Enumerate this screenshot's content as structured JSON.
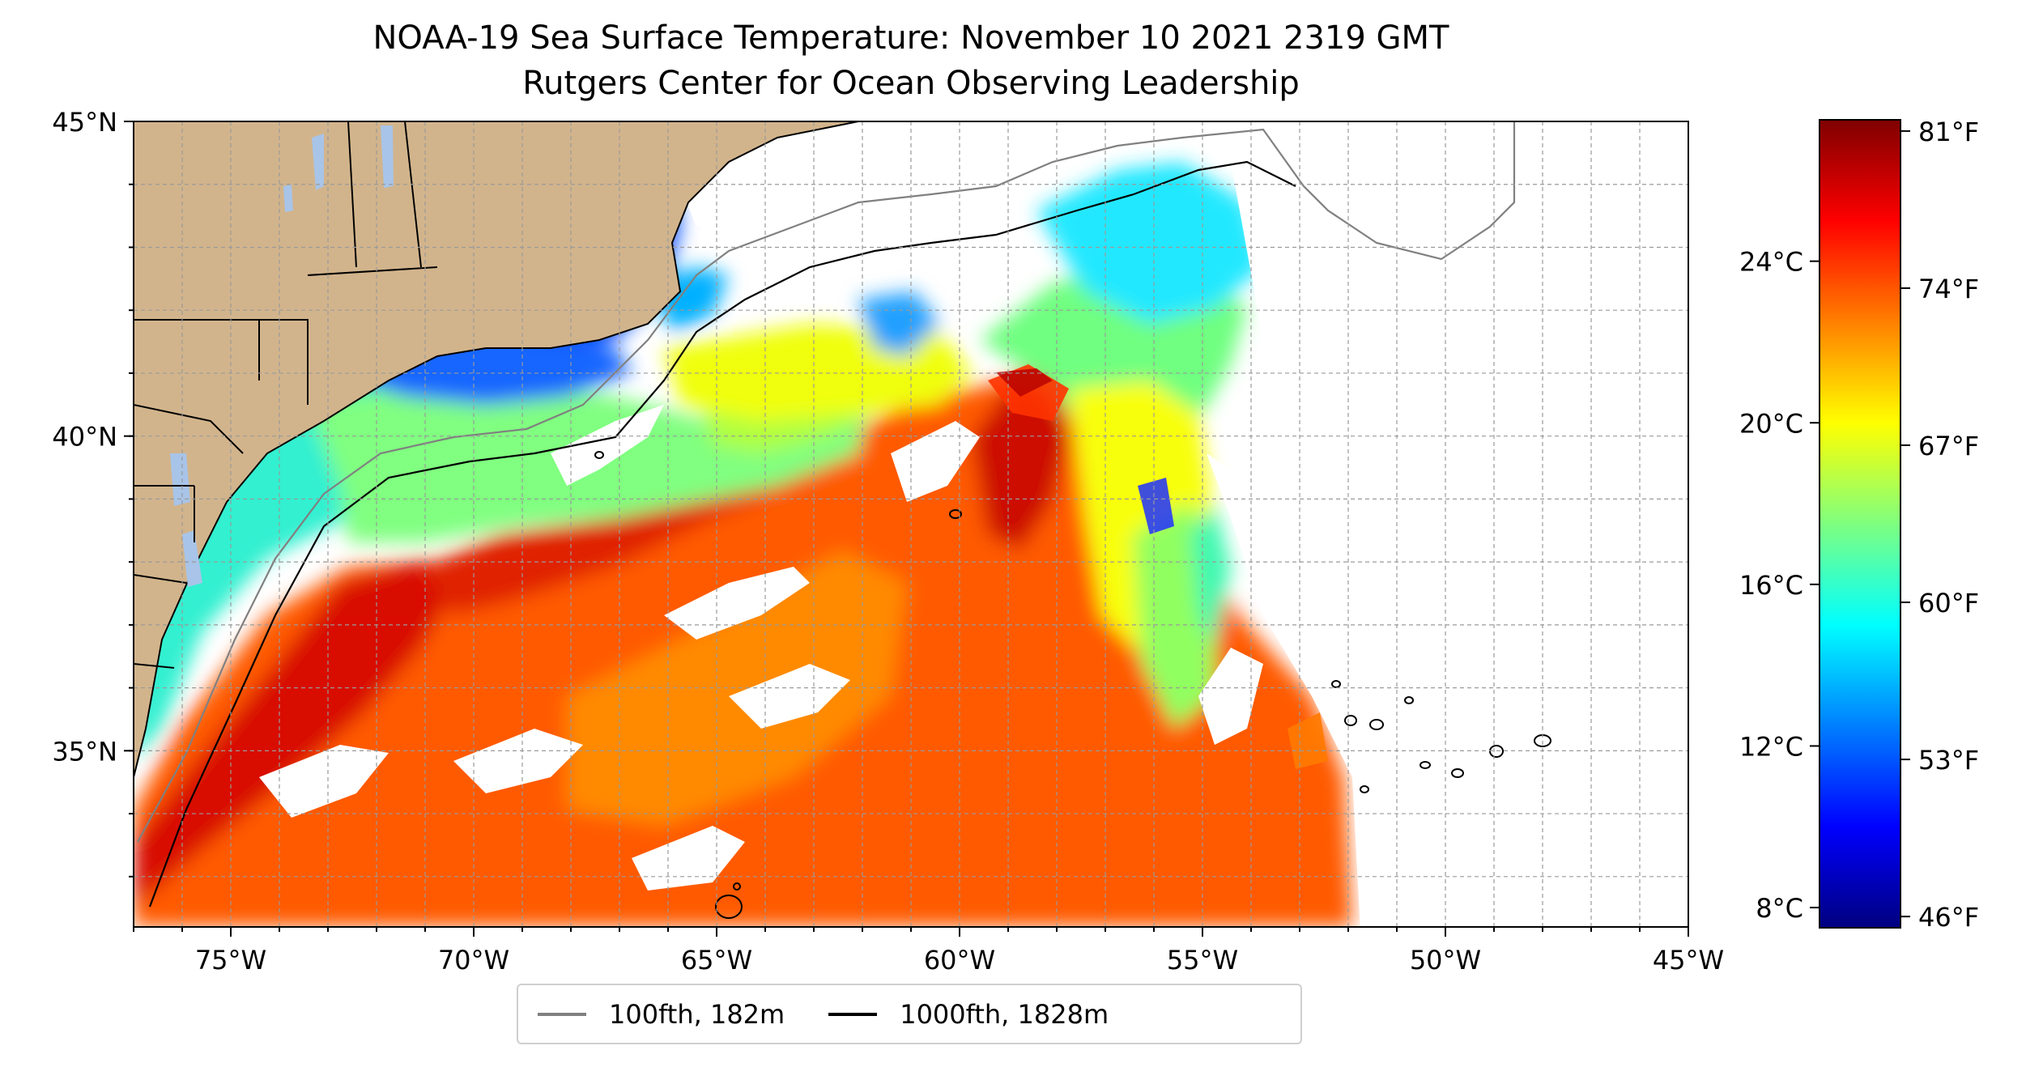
{
  "title": {
    "line1": "NOAA-19 Sea Surface Temperature: November 10 2021 2319 GMT",
    "line2": "Rutgers Center for Ocean Observing Leadership"
  },
  "map": {
    "projection": "PlateCarree",
    "lon_range": [
      -77,
      -45
    ],
    "lat_range": [
      32.2,
      45
    ],
    "lon_ticks": [
      {
        "value": -75,
        "label": "75°W"
      },
      {
        "value": -70,
        "label": "70°W"
      },
      {
        "value": -65,
        "label": "65°W"
      },
      {
        "value": -60,
        "label": "60°W"
      },
      {
        "value": -55,
        "label": "55°W"
      },
      {
        "value": -50,
        "label": "50°W"
      },
      {
        "value": -45,
        "label": "45°W"
      }
    ],
    "lat_ticks": [
      {
        "value": 45,
        "label": "45°N"
      },
      {
        "value": 40,
        "label": "40°N"
      },
      {
        "value": 35,
        "label": "35°N"
      }
    ],
    "gridlines": true,
    "land_color": "#d2b48c",
    "no_data_color": "#ffffff"
  },
  "colorbar": {
    "colormap": "jet",
    "range_c": [
      7.5,
      27.5
    ],
    "fahrenheit_labels": [
      "81°F",
      "74°F",
      "67°F",
      "60°F",
      "53°F",
      "46°F"
    ],
    "fahrenheit_values": [
      81,
      74,
      67,
      60,
      53,
      46
    ],
    "celsius_labels": [
      "24°C",
      "20°C",
      "16°C",
      "12°C",
      "8°C"
    ],
    "celsius_values": [
      24,
      20,
      16,
      12,
      8
    ]
  },
  "legend": {
    "items": [
      {
        "label": "100fth, 182m",
        "color": "#808080"
      },
      {
        "label": "1000fth, 1828m",
        "color": "#000000"
      }
    ]
  }
}
